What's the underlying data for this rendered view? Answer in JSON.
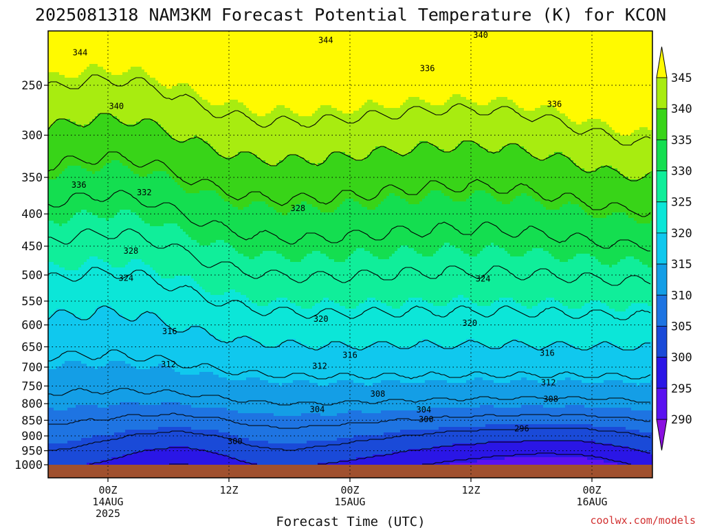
{
  "chart_data": {
    "type": "heatmap",
    "title": "2025081318 NAM3KM Forecast Potential Temperature (K) for KCON",
    "xlabel": "Forecast Time (UTC)",
    "ylabel": "",
    "credit": "coolwx.com/models",
    "y_axis": {
      "scale": "log",
      "inverted": true,
      "ylim": [
        1000,
        200
      ],
      "ticks": [
        250,
        300,
        350,
        400,
        450,
        500,
        550,
        600,
        650,
        700,
        750,
        800,
        850,
        900,
        950,
        1000
      ]
    },
    "x_axis": {
      "xlim_hours": [
        -5,
        45
      ],
      "ticks": [
        {
          "hour": 0,
          "lines": [
            "00Z",
            "14AUG",
            "2025"
          ]
        },
        {
          "hour": 10,
          "lines": [
            "12Z"
          ]
        },
        {
          "hour": 20,
          "lines": [
            "00Z",
            "15AUG"
          ]
        },
        {
          "hour": 30,
          "lines": [
            "12Z"
          ]
        },
        {
          "hour": 40,
          "lines": [
            "00Z",
            "16AUG"
          ]
        }
      ]
    },
    "grid": true,
    "colorbar": {
      "placement": "right",
      "levels": [
        290,
        295,
        300,
        305,
        310,
        315,
        320,
        325,
        330,
        335,
        340,
        345
      ],
      "labels": [
        "345",
        "340",
        "335",
        "330",
        "325",
        "320",
        "315",
        "310",
        "305",
        "300",
        "295",
        "290"
      ],
      "colors": [
        "#8a10e0",
        "#5a12f0",
        "#2a16e6",
        "#1a4ad8",
        "#1e74e2",
        "#149ee6",
        "#10c8ee",
        "#0ce6d8",
        "#10ee9a",
        "#14de50",
        "#38d418",
        "#a8ec10",
        "#fffa00"
      ],
      "extend": "both"
    },
    "ground_color": "#a0502e",
    "contour_levels": [
      296,
      300,
      304,
      308,
      312,
      316,
      320,
      324,
      328,
      332,
      336,
      340,
      344
    ],
    "contour_labels": [
      {
        "value": "344",
        "hour": -2.3,
        "pressure": 222
      },
      {
        "value": "344",
        "hour": 18.0,
        "pressure": 212
      },
      {
        "value": "340",
        "hour": 30.8,
        "pressure": 208
      },
      {
        "value": "340",
        "hour": 0.7,
        "pressure": 270
      },
      {
        "value": "336",
        "hour": 26.4,
        "pressure": 235
      },
      {
        "value": "336",
        "hour": 36.9,
        "pressure": 268
      },
      {
        "value": "336",
        "hour": -2.4,
        "pressure": 360
      },
      {
        "value": "332",
        "hour": 3.0,
        "pressure": 370
      },
      {
        "value": "328",
        "hour": 15.7,
        "pressure": 392
      },
      {
        "value": "328",
        "hour": 1.9,
        "pressure": 458
      },
      {
        "value": "324",
        "hour": 1.5,
        "pressure": 506
      },
      {
        "value": "324",
        "hour": 31.0,
        "pressure": 507
      },
      {
        "value": "320",
        "hour": 17.6,
        "pressure": 587
      },
      {
        "value": "320",
        "hour": 29.9,
        "pressure": 596
      },
      {
        "value": "316",
        "hour": 5.1,
        "pressure": 614
      },
      {
        "value": "316",
        "hour": 20.0,
        "pressure": 670
      },
      {
        "value": "316",
        "hour": 36.3,
        "pressure": 665
      },
      {
        "value": "312",
        "hour": 5.0,
        "pressure": 693
      },
      {
        "value": "312",
        "hour": 17.5,
        "pressure": 697
      },
      {
        "value": "312",
        "hour": 36.4,
        "pressure": 741
      },
      {
        "value": "308",
        "hour": 22.3,
        "pressure": 772
      },
      {
        "value": "308",
        "hour": 36.6,
        "pressure": 787
      },
      {
        "value": "304",
        "hour": 17.3,
        "pressure": 817
      },
      {
        "value": "304",
        "hour": 26.1,
        "pressure": 818
      },
      {
        "value": "300",
        "hour": 26.3,
        "pressure": 847
      },
      {
        "value": "300",
        "hour": 10.5,
        "pressure": 918
      },
      {
        "value": "296",
        "hour": 34.2,
        "pressure": 877
      }
    ]
  }
}
